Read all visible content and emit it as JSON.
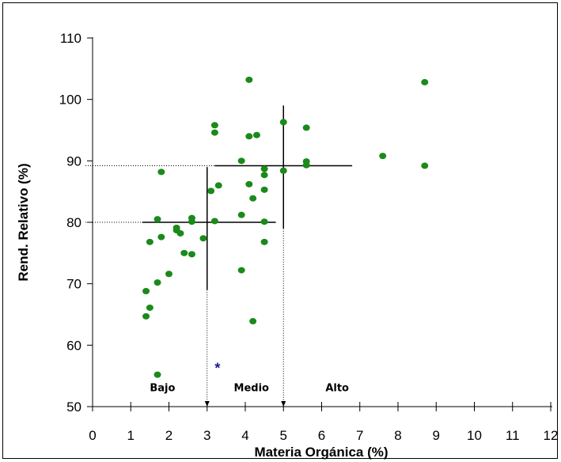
{
  "chart_data": {
    "type": "scatter",
    "title": "",
    "xlabel": "Materia Orgánica (%)",
    "ylabel": "Rend. Relativo (%)",
    "xlim": [
      0,
      12
    ],
    "ylim": [
      50,
      110
    ],
    "x_ticks": [
      0,
      1,
      2,
      3,
      4,
      5,
      6,
      7,
      8,
      9,
      10,
      11,
      12
    ],
    "y_ticks": [
      50,
      60,
      70,
      80,
      90,
      100,
      110
    ],
    "grid": false,
    "point_color": "#1a8a1a",
    "points": [
      {
        "x": 1.4,
        "y": 68.8
      },
      {
        "x": 1.4,
        "y": 64.7
      },
      {
        "x": 1.5,
        "y": 66.1
      },
      {
        "x": 1.5,
        "y": 76.8
      },
      {
        "x": 1.7,
        "y": 80.5
      },
      {
        "x": 1.7,
        "y": 70.2
      },
      {
        "x": 1.7,
        "y": 55.2
      },
      {
        "x": 1.8,
        "y": 88.2
      },
      {
        "x": 1.8,
        "y": 77.6
      },
      {
        "x": 2.0,
        "y": 71.6
      },
      {
        "x": 2.2,
        "y": 78.7
      },
      {
        "x": 2.2,
        "y": 79.1
      },
      {
        "x": 2.3,
        "y": 78.2
      },
      {
        "x": 2.4,
        "y": 75.0
      },
      {
        "x": 2.6,
        "y": 80.7
      },
      {
        "x": 2.6,
        "y": 80.1
      },
      {
        "x": 2.6,
        "y": 74.8
      },
      {
        "x": 2.9,
        "y": 77.4
      },
      {
        "x": 3.1,
        "y": 85.1
      },
      {
        "x": 3.2,
        "y": 95.8
      },
      {
        "x": 3.2,
        "y": 94.6
      },
      {
        "x": 3.2,
        "y": 80.2
      },
      {
        "x": 3.3,
        "y": 86.0
      },
      {
        "x": 3.9,
        "y": 90.0
      },
      {
        "x": 3.9,
        "y": 81.2
      },
      {
        "x": 3.9,
        "y": 72.2
      },
      {
        "x": 4.1,
        "y": 103.2
      },
      {
        "x": 4.1,
        "y": 94.0
      },
      {
        "x": 4.1,
        "y": 86.2
      },
      {
        "x": 4.2,
        "y": 83.9
      },
      {
        "x": 4.2,
        "y": 63.9
      },
      {
        "x": 4.3,
        "y": 94.2
      },
      {
        "x": 4.5,
        "y": 88.7
      },
      {
        "x": 4.5,
        "y": 87.7
      },
      {
        "x": 4.5,
        "y": 85.3
      },
      {
        "x": 4.5,
        "y": 80.1
      },
      {
        "x": 4.5,
        "y": 76.8
      },
      {
        "x": 5.0,
        "y": 96.3
      },
      {
        "x": 5.0,
        "y": 88.4
      },
      {
        "x": 5.6,
        "y": 95.4
      },
      {
        "x": 5.6,
        "y": 89.9
      },
      {
        "x": 5.6,
        "y": 89.3
      },
      {
        "x": 7.6,
        "y": 90.8
      },
      {
        "x": 8.7,
        "y": 102.8
      },
      {
        "x": 8.7,
        "y": 89.2
      }
    ],
    "critical_levels": [
      {
        "y": 80,
        "x_drop": 3.0,
        "h_from": 1.3,
        "h_to": 4.8,
        "v_from": 69,
        "v_to": 89
      },
      {
        "y": 89.2,
        "x_drop": 5.0,
        "h_from": 3.2,
        "h_to": 6.8,
        "v_from": 79,
        "v_to": 99
      }
    ],
    "zone_labels": [
      {
        "text": "Bajo",
        "x": 1.5,
        "y": 52.5
      },
      {
        "text": "Medio",
        "x": 3.7,
        "y": 52.5
      },
      {
        "text": "Alto",
        "x": 6.1,
        "y": 52.5
      }
    ],
    "annotations": [
      {
        "text": "*",
        "x": 3.2,
        "y": 56.4,
        "color": "#1a1a8c"
      }
    ]
  }
}
